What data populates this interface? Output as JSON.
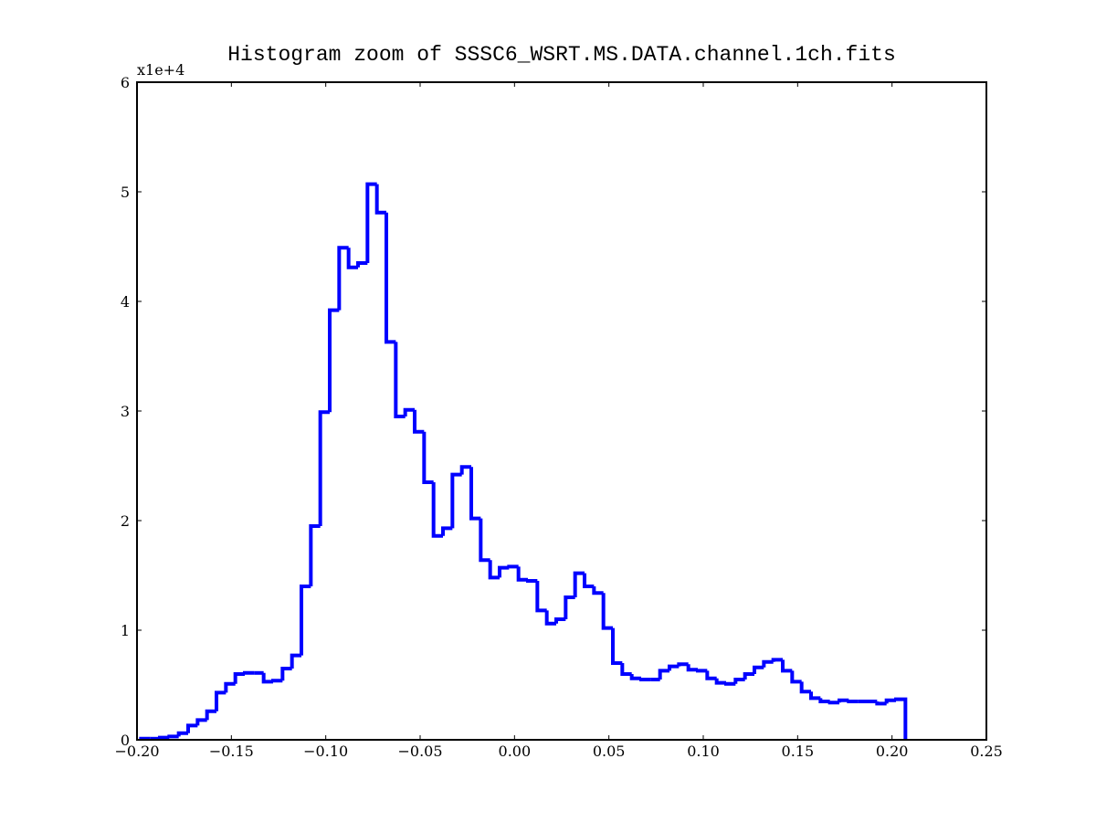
{
  "chart_data": {
    "type": "histogram",
    "title": "Histogram zoom of SSSC6_WSRT.MS.DATA.channel.1ch.fits",
    "y_offset_label": "x1e+4",
    "color": "#0000ff",
    "bins": [
      -0.1979,
      -0.1929,
      -0.1879,
      -0.1829,
      -0.1779,
      -0.1729,
      -0.1679,
      -0.1629,
      -0.1579,
      -0.1529,
      -0.1479,
      -0.1429,
      -0.1379,
      -0.1329,
      -0.1279,
      -0.1229,
      -0.1179,
      -0.1129,
      -0.1079,
      -0.1029,
      -0.0979,
      -0.0929,
      -0.0879,
      -0.0829,
      -0.0779,
      -0.0729,
      -0.0679,
      -0.0629,
      -0.0579,
      -0.0529,
      -0.0479,
      -0.0429,
      -0.0379,
      -0.0329,
      -0.0279,
      -0.0229,
      -0.0179,
      -0.0129,
      -0.0079,
      -0.0029,
      0.0021,
      0.0071,
      0.0121,
      0.0171,
      0.0221,
      0.0271,
      0.0321,
      0.0371,
      0.0421,
      0.0471,
      0.0521,
      0.0571,
      0.0621,
      0.0671,
      0.0721,
      0.0771,
      0.0821,
      0.0871,
      0.0921,
      0.0971,
      0.1021,
      0.1071,
      0.1121,
      0.1171,
      0.1221,
      0.1271,
      0.1321,
      0.1371,
      0.1421,
      0.1471,
      0.1521,
      0.1571,
      0.1621,
      0.1671,
      0.1721,
      0.1771,
      0.1821,
      0.1871,
      0.1921,
      0.1971,
      0.2021,
      0.2071
    ],
    "values": [
      0.01,
      0.01,
      0.02,
      0.03,
      0.06,
      0.13,
      0.18,
      0.26,
      0.43,
      0.51,
      0.6,
      0.61,
      0.61,
      0.53,
      0.54,
      0.65,
      0.77,
      1.4,
      1.95,
      2.99,
      3.92,
      4.49,
      4.31,
      4.35,
      5.07,
      4.81,
      3.63,
      2.95,
      3.01,
      2.81,
      2.35,
      1.86,
      1.93,
      2.42,
      2.49,
      2.02,
      1.64,
      1.48,
      1.57,
      1.58,
      1.46,
      1.45,
      1.18,
      1.06,
      1.1,
      1.3,
      1.52,
      1.4,
      1.34,
      1.02,
      0.7,
      0.6,
      0.56,
      0.55,
      0.55,
      0.63,
      0.67,
      0.69,
      0.64,
      0.63,
      0.56,
      0.52,
      0.51,
      0.55,
      0.6,
      0.66,
      0.71,
      0.73,
      0.63,
      0.53,
      0.44,
      0.38,
      0.35,
      0.34,
      0.36,
      0.35,
      0.35,
      0.35,
      0.33,
      0.36,
      0.37
    ],
    "xlim": [
      -0.2,
      0.25
    ],
    "xticks": [
      {
        "value": -0.2,
        "label": "−0.20"
      },
      {
        "value": -0.15,
        "label": "−0.15"
      },
      {
        "value": -0.1,
        "label": "−0.10"
      },
      {
        "value": -0.05,
        "label": "−0.05"
      },
      {
        "value": 0,
        "label": "0.00"
      },
      {
        "value": 0.05,
        "label": "0.05"
      },
      {
        "value": 0.1,
        "label": "0.10"
      },
      {
        "value": 0.15,
        "label": "0.15"
      },
      {
        "value": 0.2,
        "label": "0.20"
      },
      {
        "value": 0.25,
        "label": "0.25"
      }
    ],
    "ylim": [
      0,
      6
    ],
    "yticks": [
      0,
      1,
      2,
      3,
      4,
      5,
      6
    ],
    "grid": false
  }
}
